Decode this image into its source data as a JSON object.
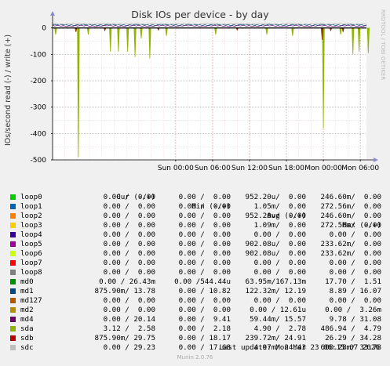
{
  "chart_data": {
    "type": "line",
    "title": "Disk IOs per device - by day",
    "ylabel": "IOs/second read (-) / write (+)",
    "watermark": "RRDTOOL / TOBI OETIKER",
    "ylim": [
      -500,
      20
    ],
    "yticks": [
      0,
      -100,
      -200,
      -300,
      -400,
      -500
    ],
    "ytick_labels": [
      "0",
      "-100",
      "-200",
      "-300",
      "-400",
      "-500"
    ],
    "xrange_hours": [
      -20,
      31
    ],
    "xticks": [
      0,
      6,
      12,
      18,
      24,
      30
    ],
    "xtick_labels": [
      "Sun 00:00",
      "Sun 06:00",
      "Sun 12:00",
      "Sun 18:00",
      "Mon 00:00",
      "Mon 06:00"
    ],
    "grid": true,
    "series": [
      {
        "name": "sda",
        "color": "#8fb500",
        "role": "read-spikes",
        "spikes": [
          [
            -19.5,
            -25
          ],
          [
            -15.8,
            -490
          ],
          [
            -14.2,
            -25
          ],
          [
            -10.6,
            -90
          ],
          [
            -9.3,
            -90
          ],
          [
            -7.8,
            -90
          ],
          [
            -6.6,
            -110
          ],
          [
            -5.6,
            -40
          ],
          [
            -4.2,
            -115
          ],
          [
            -1.5,
            -30
          ],
          [
            6.5,
            -25
          ],
          [
            14.8,
            -25
          ],
          [
            19.0,
            -30
          ],
          [
            24.0,
            -380
          ],
          [
            26.8,
            -25
          ],
          [
            28.8,
            -100
          ],
          [
            29.8,
            -90
          ],
          [
            31.3,
            -95
          ]
        ]
      },
      {
        "name": "sdb",
        "color": "#8a3a00",
        "role": "read-spikes",
        "spikes": [
          [
            -16.2,
            -15
          ],
          [
            -11.5,
            -10
          ],
          [
            -2.8,
            -8
          ],
          [
            10.0,
            -8
          ],
          [
            23.8,
            -45
          ],
          [
            25.2,
            -10
          ],
          [
            27.2,
            -15
          ]
        ]
      },
      {
        "name": "md1",
        "color": "#0f5c80",
        "role": "write-band",
        "level": 12
      },
      {
        "name": "loop5",
        "color": "#6b1f86",
        "role": "write-band",
        "level": 8
      },
      {
        "name": "sdc",
        "color": "#aaaaaa",
        "role": "write-band",
        "level": 16
      }
    ]
  },
  "legend_header": {
    "cur": "Cur (-/+)",
    "min": "Min (-/+)",
    "avg": "Avg (-/+)",
    "max": "Max (-/+)"
  },
  "legend": [
    {
      "name": "loop0",
      "color": "#00cc00",
      "cur": "0.00 /  0.00",
      "min": "0.00 /  0.00",
      "avg": "952.20u/  0.00",
      "max": "246.60m/  0.00"
    },
    {
      "name": "loop1",
      "color": "#0066b3",
      "cur": "0.00 /  0.00",
      "min": "0.00 /  0.00",
      "avg": "1.05m/  0.00",
      "max": "272.56m/  0.00"
    },
    {
      "name": "loop2",
      "color": "#ff8000",
      "cur": "0.00 /  0.00",
      "min": "0.00 /  0.00",
      "avg": "952.20u/  0.00",
      "max": "246.60m/  0.00"
    },
    {
      "name": "loop3",
      "color": "#ffcc00",
      "cur": "0.00 /  0.00",
      "min": "0.00 /  0.00",
      "avg": "1.09m/  0.00",
      "max": "272.56m/  0.00"
    },
    {
      "name": "loop4",
      "color": "#330099",
      "cur": "0.00 /  0.00",
      "min": "0.00 /  0.00",
      "avg": "0.00 /  0.00",
      "max": "0.00 /  0.00"
    },
    {
      "name": "loop5",
      "color": "#990099",
      "cur": "0.00 /  0.00",
      "min": "0.00 /  0.00",
      "avg": "902.08u/  0.00",
      "max": "233.62m/  0.00"
    },
    {
      "name": "loop6",
      "color": "#ccff00",
      "cur": "0.00 /  0.00",
      "min": "0.00 /  0.00",
      "avg": "902.08u/  0.00",
      "max": "233.62m/  0.00"
    },
    {
      "name": "loop7",
      "color": "#ff0000",
      "cur": "0.00 /  0.00",
      "min": "0.00 /  0.00",
      "avg": "0.00 /  0.00",
      "max": "0.00 /  0.00"
    },
    {
      "name": "loop8",
      "color": "#808080",
      "cur": "0.00 /  0.00",
      "min": "0.00 /  0.00",
      "avg": "0.00 /  0.00",
      "max": "0.00 /  0.00"
    },
    {
      "name": "md0",
      "color": "#008f00",
      "cur": "0.00 / 26.43m",
      "min": "0.00 /544.44u",
      "avg": "63.95m/167.13m",
      "max": "17.70 /  1.51"
    },
    {
      "name": "md1",
      "color": "#00487d",
      "cur": "875.90m/ 13.78",
      "min": "0.00 / 10.82",
      "avg": "122.32m/ 12.19",
      "max": "8.89 / 16.07"
    },
    {
      "name": "md127",
      "color": "#b35a00",
      "cur": "0.00 /  0.00",
      "min": "0.00 /  0.00",
      "avg": "0.00 /  0.00",
      "max": "0.00 /  0.00"
    },
    {
      "name": "md2",
      "color": "#b38f00",
      "cur": "0.00 /  0.00",
      "min": "0.00 /  0.00",
      "avg": "0.00 / 12.61u",
      "max": "0.00 /  3.26m"
    },
    {
      "name": "md4",
      "color": "#6b006b",
      "cur": "0.00 / 20.14",
      "min": "0.00 /  9.41",
      "avg": "59.44m/ 15.57",
      "max": "9.78 / 31.08"
    },
    {
      "name": "sda",
      "color": "#8fb300",
      "cur": "3.12 /  2.58",
      "min": "0.00 /  2.18",
      "avg": "4.90 /  2.78",
      "max": "486.94 /  4.79"
    },
    {
      "name": "sdb",
      "color": "#b30000",
      "cur": "875.90m/ 29.75",
      "min": "0.00 / 18.17",
      "avg": "239.72m/ 24.91",
      "max": "26.29 / 34.28"
    },
    {
      "name": "sdc",
      "color": "#bebebe",
      "cur": "0.00 / 29.23",
      "min": "0.00 / 17.68",
      "avg": "4.97m/ 24.43",
      "max": "600.28m/ 33.78"
    }
  ],
  "last_update": "Last update: Mon Mar 23 06:15:07 2026",
  "footer": "Munin 2.0.76"
}
